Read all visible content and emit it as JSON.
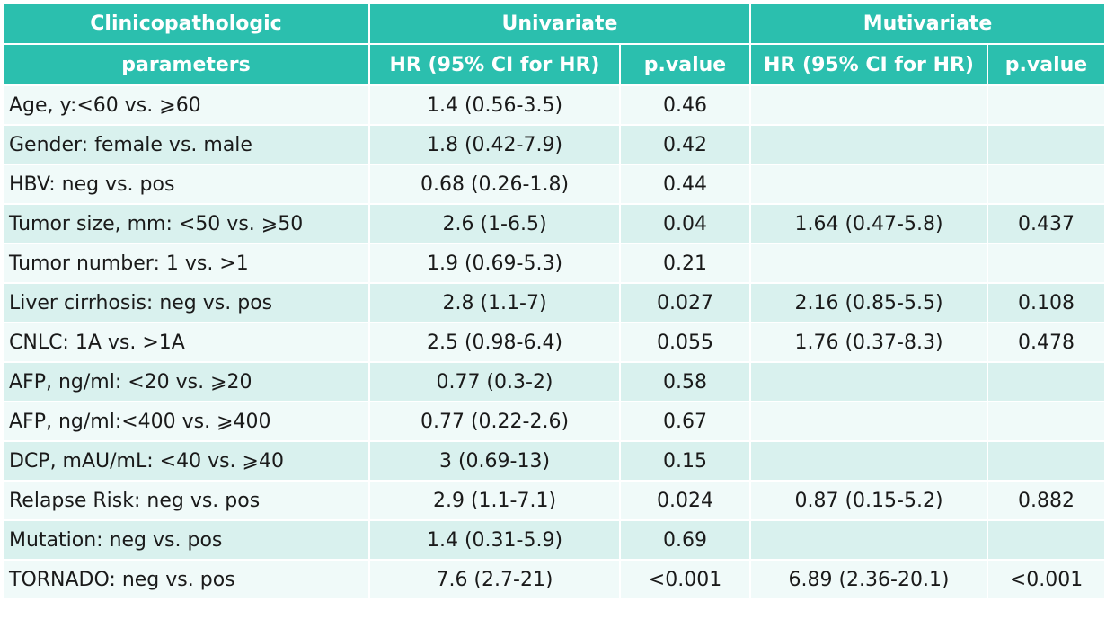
{
  "colors": {
    "header_bg": "#2bbfae",
    "row_light": "#f0faf9",
    "row_tint": "#d9f1ee"
  },
  "header": {
    "row1": {
      "param": "Clinicopathologic",
      "univariate": "Univariate",
      "multivariate": "Mutivariate"
    },
    "row2": {
      "param": "parameters",
      "uni_hr": "HR (95% CI for HR)",
      "uni_p": "p.value",
      "multi_hr": "HR (95% CI for HR)",
      "multi_p": "p.value"
    }
  },
  "rows": [
    {
      "param": "Age, y:<60 vs. ⩾60",
      "uni_hr": "1.4 (0.56-3.5)",
      "uni_p": "0.46",
      "multi_hr": "",
      "multi_p": ""
    },
    {
      "param": "Gender: female vs. male",
      "uni_hr": "1.8 (0.42-7.9)",
      "uni_p": "0.42",
      "multi_hr": "",
      "multi_p": ""
    },
    {
      "param": "HBV: neg vs. pos",
      "uni_hr": "0.68 (0.26-1.8)",
      "uni_p": "0.44",
      "multi_hr": "",
      "multi_p": ""
    },
    {
      "param": "Tumor size, mm: <50 vs. ⩾50",
      "uni_hr": "2.6 (1-6.5)",
      "uni_p": "0.04",
      "multi_hr": "1.64 (0.47-5.8)",
      "multi_p": "0.437"
    },
    {
      "param": "Tumor number: 1 vs. >1",
      "uni_hr": "1.9 (0.69-5.3)",
      "uni_p": "0.21",
      "multi_hr": "",
      "multi_p": ""
    },
    {
      "param": "Liver cirrhosis: neg vs. pos",
      "uni_hr": "2.8 (1.1-7)",
      "uni_p": "0.027",
      "multi_hr": "2.16 (0.85-5.5)",
      "multi_p": "0.108"
    },
    {
      "param": "CNLC: 1A vs. >1A",
      "uni_hr": "2.5 (0.98-6.4)",
      "uni_p": "0.055",
      "multi_hr": "1.76 (0.37-8.3)",
      "multi_p": "0.478"
    },
    {
      "param": "AFP, ng/ml: <20 vs. ⩾20",
      "uni_hr": "0.77 (0.3-2)",
      "uni_p": "0.58",
      "multi_hr": "",
      "multi_p": ""
    },
    {
      "param": "AFP, ng/ml:<400 vs. ⩾400",
      "uni_hr": "0.77 (0.22-2.6)",
      "uni_p": "0.67",
      "multi_hr": "",
      "multi_p": ""
    },
    {
      "param": "DCP, mAU/mL: <40 vs. ⩾40",
      "uni_hr": "3 (0.69-13)",
      "uni_p": "0.15",
      "multi_hr": "",
      "multi_p": ""
    },
    {
      "param": "Relapse Risk: neg vs. pos",
      "uni_hr": "2.9 (1.1-7.1)",
      "uni_p": "0.024",
      "multi_hr": "0.87 (0.15-5.2)",
      "multi_p": "0.882"
    },
    {
      "param": "Mutation: neg vs. pos",
      "uni_hr": "1.4 (0.31-5.9)",
      "uni_p": "0.69",
      "multi_hr": "",
      "multi_p": ""
    },
    {
      "param": "TORNADO: neg vs. pos",
      "uni_hr": "7.6 (2.7-21)",
      "uni_p": "<0.001",
      "multi_hr": "6.89 (2.36-20.1)",
      "multi_p": "<0.001"
    }
  ]
}
